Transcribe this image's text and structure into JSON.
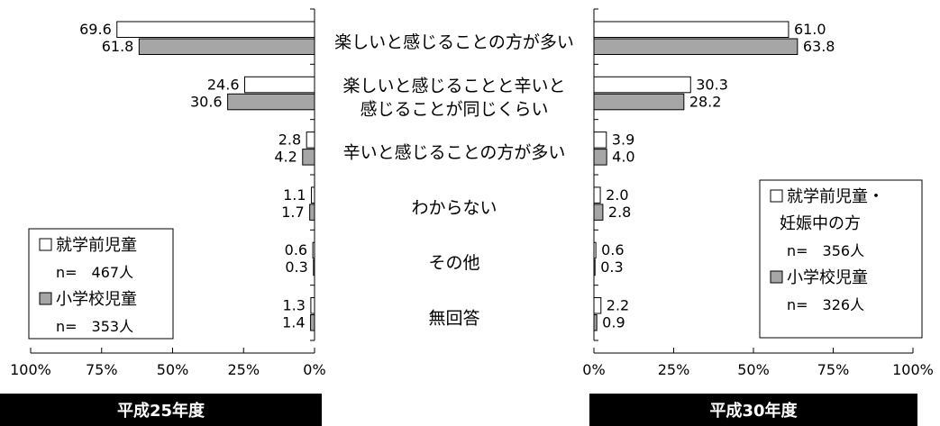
{
  "chart_data": {
    "type": "bar",
    "orientation": "horizontal",
    "categories": [
      [
        "楽しいと感じることの方が多い"
      ],
      [
        "楽しいと感じることと辛いと",
        "感じることが同じくらい"
      ],
      [
        "辛いと感じることの方が多い"
      ],
      [
        "わからない"
      ],
      [
        "その他"
      ],
      [
        "無回答"
      ]
    ],
    "panels": [
      {
        "title": "平成25年度",
        "direction": "left",
        "xlim": [
          0,
          100
        ],
        "ticks": [
          "100%",
          "75%",
          "50%",
          "25%",
          "0%"
        ],
        "tick_values": [
          100,
          75,
          50,
          25,
          0
        ],
        "series": [
          {
            "name": "就学前児童",
            "color": "#ffffff",
            "values": [
              69.6,
              24.6,
              2.8,
              1.1,
              0.6,
              1.3
            ],
            "labels": [
              "69.6",
              "24.6",
              "2.8",
              "1.1",
              "0.6",
              "1.3"
            ]
          },
          {
            "name": "小学校児童",
            "color": "#a6a6a6",
            "values": [
              61.8,
              30.6,
              4.2,
              1.7,
              0.3,
              1.4
            ],
            "labels": [
              "61.8",
              "30.6",
              "4.2",
              "1.7",
              "0.3",
              "1.4"
            ]
          }
        ],
        "legend": {
          "position": "bottom-left",
          "entries": [
            {
              "marker": "□",
              "name": "就学前児童",
              "n": "n=　467人"
            },
            {
              "marker": "■",
              "name": "小学校児童",
              "n": "n=　353人"
            }
          ]
        }
      },
      {
        "title": "平成30年度",
        "direction": "right",
        "xlim": [
          0,
          100
        ],
        "ticks": [
          "0%",
          "25%",
          "50%",
          "75%",
          "100%"
        ],
        "tick_values": [
          0,
          25,
          50,
          75,
          100
        ],
        "series": [
          {
            "name": "就学前児童・妊娠中の方",
            "color": "#ffffff",
            "values": [
              61.0,
              30.3,
              3.9,
              2.0,
              0.6,
              2.2
            ],
            "labels": [
              "61.0",
              "30.3",
              "3.9",
              "2.0",
              "0.6",
              "2.2"
            ]
          },
          {
            "name": "小学校児童",
            "color": "#a6a6a6",
            "values": [
              63.8,
              28.2,
              4.0,
              2.8,
              0.3,
              0.9
            ],
            "labels": [
              "63.8",
              "28.2",
              "4.0",
              "2.8",
              "0.3",
              "0.9"
            ]
          }
        ],
        "legend": {
          "position": "bottom-right",
          "entries": [
            {
              "marker": "□",
              "name": "就学前児童・",
              "name2": "妊娠中の方",
              "n": "n=　356人"
            },
            {
              "marker": "■",
              "name": "小学校児童",
              "n": "n=　326人"
            }
          ]
        }
      }
    ],
    "grid": false
  }
}
